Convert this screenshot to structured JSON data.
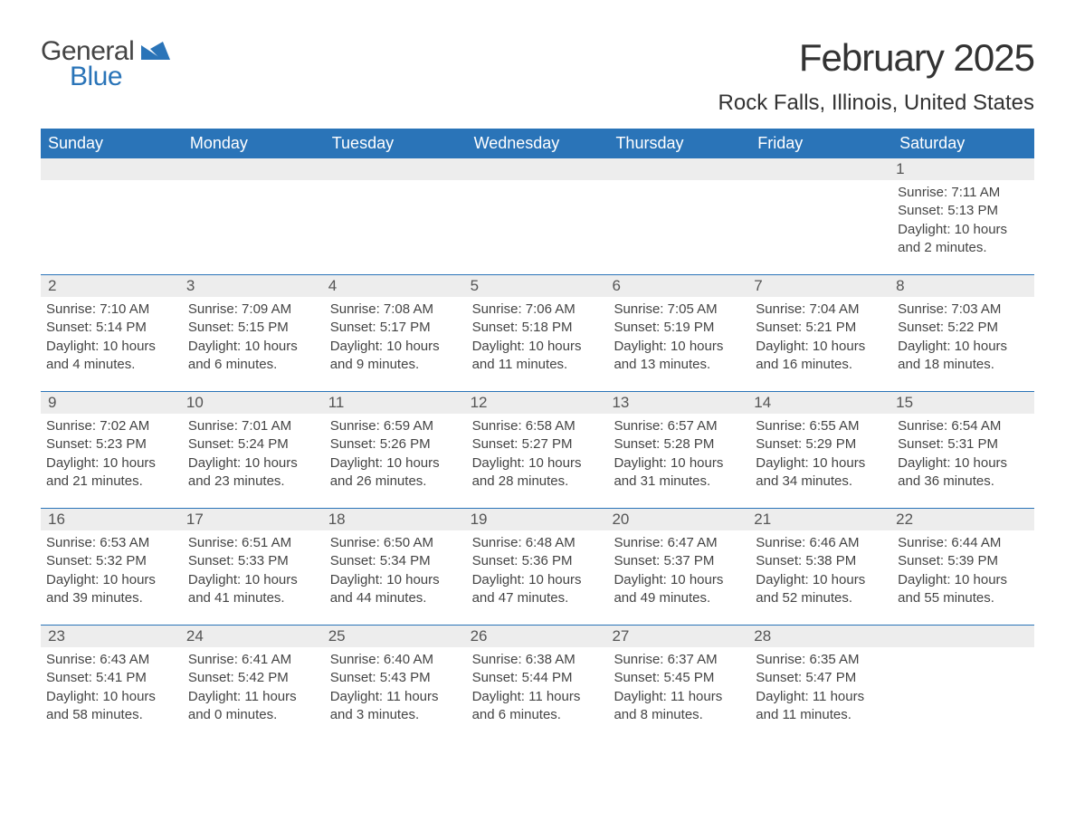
{
  "logo": {
    "text1": "General",
    "text2": "Blue",
    "shape_color": "#2a74b8"
  },
  "title": "February 2025",
  "location": "Rock Falls, Illinois, United States",
  "colors": {
    "header_bg": "#2a74b8",
    "daynum_bg": "#ededed",
    "week_border": "#2a74b8",
    "text": "#333333"
  },
  "weekdays": [
    "Sunday",
    "Monday",
    "Tuesday",
    "Wednesday",
    "Thursday",
    "Friday",
    "Saturday"
  ],
  "weeks": [
    [
      null,
      null,
      null,
      null,
      null,
      null,
      {
        "n": "1",
        "sr": "7:11 AM",
        "ss": "5:13 PM",
        "dl": "10 hours and 2 minutes."
      }
    ],
    [
      {
        "n": "2",
        "sr": "7:10 AM",
        "ss": "5:14 PM",
        "dl": "10 hours and 4 minutes."
      },
      {
        "n": "3",
        "sr": "7:09 AM",
        "ss": "5:15 PM",
        "dl": "10 hours and 6 minutes."
      },
      {
        "n": "4",
        "sr": "7:08 AM",
        "ss": "5:17 PM",
        "dl": "10 hours and 9 minutes."
      },
      {
        "n": "5",
        "sr": "7:06 AM",
        "ss": "5:18 PM",
        "dl": "10 hours and 11 minutes."
      },
      {
        "n": "6",
        "sr": "7:05 AM",
        "ss": "5:19 PM",
        "dl": "10 hours and 13 minutes."
      },
      {
        "n": "7",
        "sr": "7:04 AM",
        "ss": "5:21 PM",
        "dl": "10 hours and 16 minutes."
      },
      {
        "n": "8",
        "sr": "7:03 AM",
        "ss": "5:22 PM",
        "dl": "10 hours and 18 minutes."
      }
    ],
    [
      {
        "n": "9",
        "sr": "7:02 AM",
        "ss": "5:23 PM",
        "dl": "10 hours and 21 minutes."
      },
      {
        "n": "10",
        "sr": "7:01 AM",
        "ss": "5:24 PM",
        "dl": "10 hours and 23 minutes."
      },
      {
        "n": "11",
        "sr": "6:59 AM",
        "ss": "5:26 PM",
        "dl": "10 hours and 26 minutes."
      },
      {
        "n": "12",
        "sr": "6:58 AM",
        "ss": "5:27 PM",
        "dl": "10 hours and 28 minutes."
      },
      {
        "n": "13",
        "sr": "6:57 AM",
        "ss": "5:28 PM",
        "dl": "10 hours and 31 minutes."
      },
      {
        "n": "14",
        "sr": "6:55 AM",
        "ss": "5:29 PM",
        "dl": "10 hours and 34 minutes."
      },
      {
        "n": "15",
        "sr": "6:54 AM",
        "ss": "5:31 PM",
        "dl": "10 hours and 36 minutes."
      }
    ],
    [
      {
        "n": "16",
        "sr": "6:53 AM",
        "ss": "5:32 PM",
        "dl": "10 hours and 39 minutes."
      },
      {
        "n": "17",
        "sr": "6:51 AM",
        "ss": "5:33 PM",
        "dl": "10 hours and 41 minutes."
      },
      {
        "n": "18",
        "sr": "6:50 AM",
        "ss": "5:34 PM",
        "dl": "10 hours and 44 minutes."
      },
      {
        "n": "19",
        "sr": "6:48 AM",
        "ss": "5:36 PM",
        "dl": "10 hours and 47 minutes."
      },
      {
        "n": "20",
        "sr": "6:47 AM",
        "ss": "5:37 PM",
        "dl": "10 hours and 49 minutes."
      },
      {
        "n": "21",
        "sr": "6:46 AM",
        "ss": "5:38 PM",
        "dl": "10 hours and 52 minutes."
      },
      {
        "n": "22",
        "sr": "6:44 AM",
        "ss": "5:39 PM",
        "dl": "10 hours and 55 minutes."
      }
    ],
    [
      {
        "n": "23",
        "sr": "6:43 AM",
        "ss": "5:41 PM",
        "dl": "10 hours and 58 minutes."
      },
      {
        "n": "24",
        "sr": "6:41 AM",
        "ss": "5:42 PM",
        "dl": "11 hours and 0 minutes."
      },
      {
        "n": "25",
        "sr": "6:40 AM",
        "ss": "5:43 PM",
        "dl": "11 hours and 3 minutes."
      },
      {
        "n": "26",
        "sr": "6:38 AM",
        "ss": "5:44 PM",
        "dl": "11 hours and 6 minutes."
      },
      {
        "n": "27",
        "sr": "6:37 AM",
        "ss": "5:45 PM",
        "dl": "11 hours and 8 minutes."
      },
      {
        "n": "28",
        "sr": "6:35 AM",
        "ss": "5:47 PM",
        "dl": "11 hours and 11 minutes."
      },
      null
    ]
  ],
  "labels": {
    "sunrise": "Sunrise: ",
    "sunset": "Sunset: ",
    "daylight": "Daylight: "
  }
}
